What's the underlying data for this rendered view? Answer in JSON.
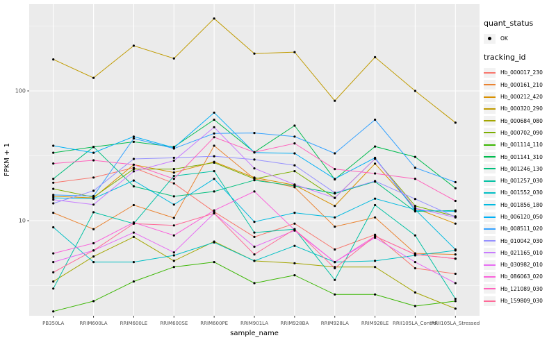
{
  "chart_data": {
    "type": "line",
    "title": "",
    "xlabel": "sample_name",
    "ylabel": "FPKM + 1",
    "y_scale": "log10",
    "y_major_ticks": [
      10,
      100
    ],
    "y_minor_gridlines": [
      3.162,
      31.623,
      316.228
    ],
    "ylim": [
      1.85,
      465
    ],
    "grid": true,
    "legend_position": "right",
    "panel_bg": "#EBEBEB",
    "grid_color": "#FFFFFF",
    "legend_key_bg": "#F2F2F2",
    "point_color": "#000000",
    "tick_label_color": "#4D4D4D",
    "axis_title_color": "#000000",
    "categories": [
      "PB350LA",
      "RRIM600LA",
      "RRIM600LE",
      "RRIM600SE",
      "RRIM600PE",
      "RRIM901LA",
      "RRIM928BA",
      "RRIM928LA",
      "RRIM928LE",
      "RRII105LA_Control",
      "RRII105LA_Stressed"
    ],
    "legend": {
      "quant_status_title": "quant_status",
      "quant_status_items": [
        {
          "label": "OK",
          "marker": "point",
          "color": "#000000"
        }
      ],
      "tracking_id_title": "tracking_id"
    },
    "series": [
      {
        "name": "Hb_000017_230",
        "color": "#F8766D",
        "values": [
          19.6,
          21.5,
          25.6,
          19.4,
          11.7,
          7.5,
          9.5,
          6.0,
          7.8,
          4.3,
          3.9
        ]
      },
      {
        "name": "Hb_000161_210",
        "color": "#EA8331",
        "values": [
          11.5,
          8.6,
          13.2,
          10.5,
          37.8,
          21.0,
          18.1,
          9.0,
          10.6,
          5.6,
          5.5
        ]
      },
      {
        "name": "Hb_000212_420",
        "color": "#D89000",
        "values": [
          15.4,
          15.0,
          27.0,
          23.5,
          28.4,
          21.5,
          18.8,
          13.0,
          27.5,
          12.5,
          9.5
        ]
      },
      {
        "name": "Hb_000320_290",
        "color": "#C09B00",
        "values": [
          175,
          126,
          223,
          178,
          361,
          194,
          199,
          84,
          182,
          100,
          57
        ]
      },
      {
        "name": "Hb_000684_080",
        "color": "#A3A500",
        "values": [
          3.4,
          5.3,
          7.5,
          4.9,
          6.9,
          4.9,
          4.7,
          4.4,
          4.4,
          2.8,
          2.1
        ]
      },
      {
        "name": "Hb_000702_090",
        "color": "#7CAE00",
        "values": [
          17.6,
          15.2,
          25.0,
          25.0,
          28.0,
          21.0,
          24.1,
          15.0,
          30.0,
          13.0,
          10.8
        ]
      },
      {
        "name": "Hb_001114_110",
        "color": "#39B600",
        "values": [
          2.0,
          2.4,
          3.4,
          4.4,
          4.8,
          3.3,
          3.8,
          2.7,
          2.7,
          2.2,
          2.4
        ]
      },
      {
        "name": "Hb_001141_310",
        "color": "#00BB4E",
        "values": [
          33.4,
          37.0,
          40.5,
          37.0,
          60.0,
          33.7,
          54.0,
          20.8,
          37.3,
          31.0,
          17.8
        ]
      },
      {
        "name": "Hb_001246_130",
        "color": "#00BF7D",
        "values": [
          21.0,
          37.0,
          18.4,
          15.4,
          16.8,
          20.5,
          18.5,
          16.2,
          20.0,
          11.8,
          12.0
        ]
      },
      {
        "name": "Hb_001257_030",
        "color": "#00C1A3",
        "values": [
          3.0,
          11.6,
          9.5,
          22.1,
          24.1,
          8.1,
          8.6,
          3.5,
          13.2,
          7.7,
          2.5
        ]
      },
      {
        "name": "Hb_001552_030",
        "color": "#00BFC4",
        "values": [
          8.9,
          4.8,
          4.8,
          5.4,
          6.8,
          4.9,
          6.4,
          4.8,
          4.9,
          5.4,
          5.9
        ]
      },
      {
        "name": "Hb_001856_180",
        "color": "#00BAE0",
        "values": [
          15.0,
          14.8,
          20.4,
          13.3,
          21.0,
          9.8,
          11.5,
          10.6,
          14.8,
          12.2,
          6.0
        ]
      },
      {
        "name": "Hb_006120_050",
        "color": "#00B0F6",
        "values": [
          37.8,
          33.4,
          44.5,
          36.5,
          68.0,
          33.5,
          33.0,
          21.0,
          30.5,
          12.0,
          11.8
        ]
      },
      {
        "name": "Hb_008511_020",
        "color": "#35A2FF",
        "values": [
          15.8,
          15.5,
          43.0,
          36.0,
          47.0,
          47.4,
          44.5,
          33.0,
          60.0,
          25.6,
          19.8
        ]
      },
      {
        "name": "Hb_010042_030",
        "color": "#9590FF",
        "values": [
          13.6,
          17.0,
          29.9,
          30.5,
          31.4,
          29.6,
          26.7,
          16.4,
          20.2,
          14.7,
          10.7
        ]
      },
      {
        "name": "Hb_021165_010",
        "color": "#C77CFF",
        "values": [
          14.5,
          13.3,
          24.0,
          29.0,
          52.5,
          25.3,
          19.0,
          15.0,
          30.0,
          12.5,
          10.6
        ]
      },
      {
        "name": "Hb_030982_010",
        "color": "#E76BF3",
        "values": [
          4.8,
          5.9,
          8.1,
          5.7,
          11.4,
          6.3,
          8.4,
          4.8,
          7.4,
          4.8,
          3.3
        ]
      },
      {
        "name": "Hb_086063_020",
        "color": "#FA62DB",
        "values": [
          5.6,
          6.7,
          9.7,
          7.7,
          12.0,
          16.8,
          8.5,
          4.8,
          7.6,
          5.5,
          5.1
        ]
      },
      {
        "name": "Hb_121089_030",
        "color": "#FF62BC",
        "values": [
          27.6,
          29.2,
          27.0,
          21.0,
          44.0,
          33.7,
          39.4,
          25.0,
          23.1,
          21.0,
          14.2
        ]
      },
      {
        "name": "Hb_159809_030",
        "color": "#FF6A98",
        "values": [
          4.0,
          5.9,
          9.5,
          9.2,
          11.4,
          5.5,
          8.6,
          4.3,
          7.6,
          5.5,
          5.1
        ]
      }
    ]
  }
}
